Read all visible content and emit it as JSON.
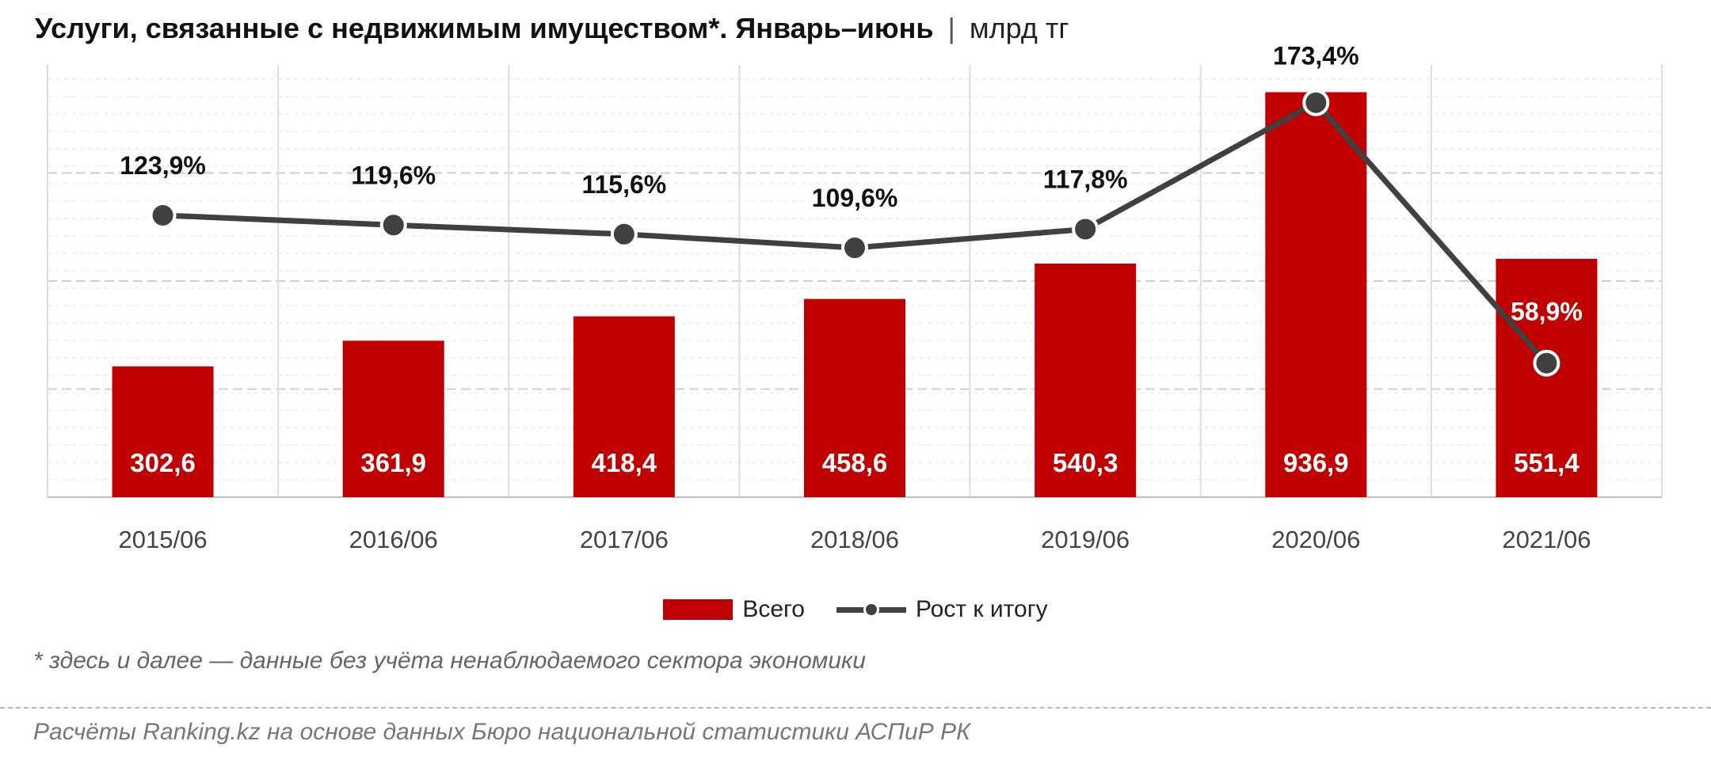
{
  "title": {
    "main": "Услуги, связанные с недвижимым имуществом*. Январь–июнь",
    "separator": "|",
    "unit": "млрд тг"
  },
  "legend": {
    "bar_label": "Всего",
    "line_label": "Рост к итогу"
  },
  "footnote": "* здесь и далее — данные без учёта ненаблюдаемого сектора экономики",
  "source": "Расчёты Ranking.kz на основе данных Бюро национальной статистики АСПиР РК",
  "colors": {
    "bar": "#c00000",
    "line": "#404040",
    "bar_label_text": "#ffffff",
    "pct_label_text": "#111111",
    "pct_label_inside_bar": "#ffffff"
  },
  "chart_data": {
    "type": "bar",
    "categories": [
      "2015/06",
      "2016/06",
      "2017/06",
      "2018/06",
      "2019/06",
      "2020/06",
      "2021/06"
    ],
    "series": [
      {
        "name": "Всего",
        "type": "bar",
        "values": [
          302.6,
          361.9,
          418.4,
          458.6,
          540.3,
          936.9,
          551.4
        ],
        "labels": [
          "302,6",
          "361,9",
          "418,4",
          "458,6",
          "540,3",
          "936,9",
          "551,4"
        ]
      },
      {
        "name": "Рост к итогу",
        "type": "line",
        "values": [
          123.9,
          119.6,
          115.6,
          109.6,
          117.8,
          173.4,
          58.9
        ],
        "labels": [
          "123,9%",
          "119,6%",
          "115,6%",
          "109,6%",
          "117,8%",
          "173,4%",
          "58,9%"
        ]
      }
    ],
    "ylim": [
      0,
      1000
    ],
    "y2lim": [
      0,
      190
    ],
    "grid": true,
    "legend_position": "bottom"
  }
}
